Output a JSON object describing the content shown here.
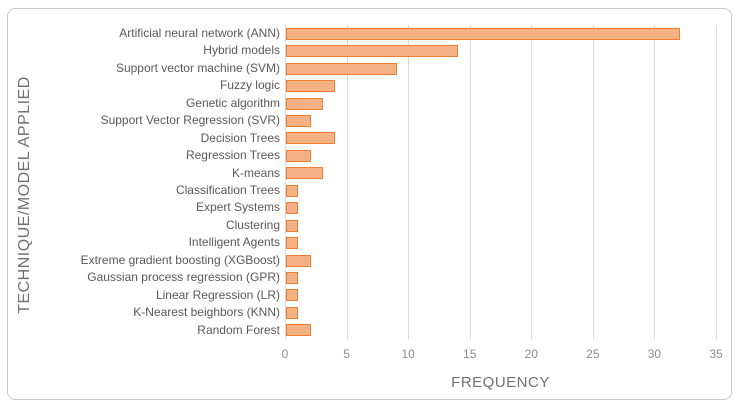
{
  "chart_data": {
    "type": "bar",
    "orientation": "horizontal",
    "title": "",
    "xlabel": "FREQUENCY",
    "ylabel": "TECHNIQUE/MODEL APPLIED",
    "xlim": [
      0,
      35
    ],
    "xticks": [
      0,
      5,
      10,
      15,
      20,
      25,
      30,
      35
    ],
    "grid": true,
    "legend": false,
    "categories": [
      "Artificial neural network (ANN)",
      "Hybrid models",
      "Support vector machine (SVM)",
      "Fuzzy logic",
      "Genetic algorithm",
      "Support Vector Regression (SVR)",
      "Decision Trees",
      "Regression Trees",
      "K-means",
      "Classification Trees",
      "Expert Systems",
      "Clustering",
      "Intelligent Agents",
      "Extreme gradient boosting (XGBoost)",
      "Gaussian process regression (GPR)",
      "Linear Regression (LR)",
      "K-Nearest beighbors (KNN)",
      "Random Forest"
    ],
    "values": [
      32,
      14,
      9,
      4,
      3,
      2,
      4,
      2,
      3,
      1,
      1,
      1,
      1,
      2,
      1,
      1,
      1,
      2
    ],
    "colors": {
      "bar_fill": "#F4B183",
      "bar_border": "#ED7D31",
      "gridline": "#D9D9D9",
      "tick_text": "#8C8C8C",
      "category_text": "#595959",
      "axis_title_text": "#757070",
      "frame_border": "#C9C9C9",
      "background": "#FFFFFF"
    }
  }
}
